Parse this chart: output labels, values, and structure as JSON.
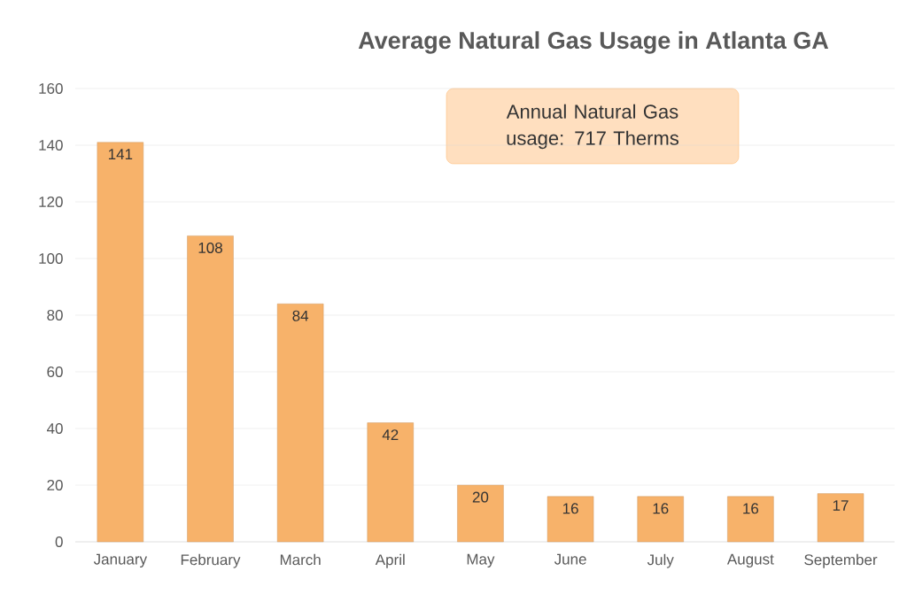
{
  "chart_data": {
    "type": "bar",
    "title": "Average Natural Gas Usage in Atlanta GA",
    "categories": [
      "January",
      "February",
      "March",
      "April",
      "May",
      "June",
      "July",
      "August",
      "September"
    ],
    "values": [
      141,
      108,
      84,
      42,
      20,
      16,
      16,
      16,
      17
    ],
    "color": "#f7b26a",
    "ylim": [
      0,
      160
    ],
    "yticks": [
      0,
      20,
      40,
      60,
      80,
      100,
      120,
      140,
      160
    ],
    "grid": "y",
    "data_labels": true,
    "annotations": [
      "Annual Natural Gas usage: 717 Therms"
    ]
  }
}
